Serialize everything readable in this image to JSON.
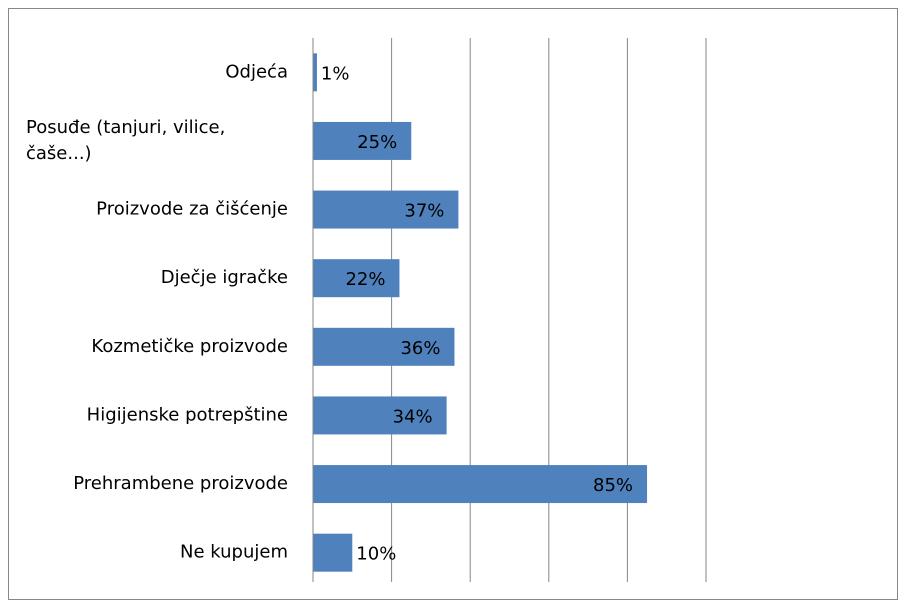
{
  "chart_data": {
    "type": "barh",
    "categories": [
      "Odjeća",
      "Posuđe (tanjuri, vilice, čaše...)",
      "Proizvode za čišćenje",
      "Dječje igračke",
      "Kozmetičke proizvode",
      "Higijenske potrepštine",
      "Prehrambene proizvode",
      "Ne kupujem"
    ],
    "values": [
      1,
      25,
      37,
      22,
      36,
      34,
      85,
      10
    ],
    "value_labels": [
      "1%",
      "25%",
      "37%",
      "22%",
      "36%",
      "34%",
      "85%",
      "10%"
    ],
    "color": "#4f81bd",
    "xlim": [
      0,
      100
    ],
    "xticks": [
      0,
      20,
      40,
      60,
      80,
      100
    ],
    "grid": true
  }
}
